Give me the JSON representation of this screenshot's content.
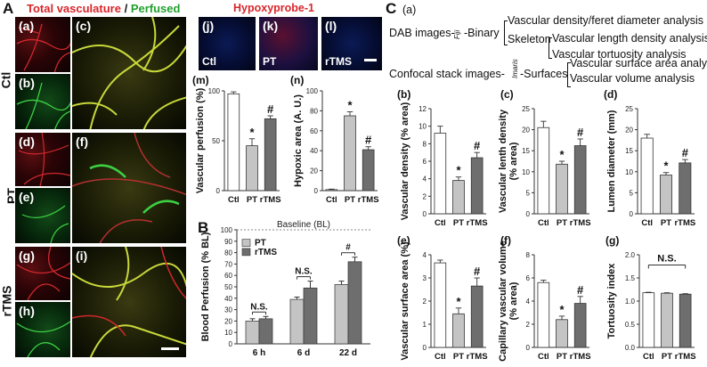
{
  "panel_letters": {
    "A": "A",
    "B": "B",
    "C": "C"
  },
  "header": {
    "total": "Total vasculature",
    "slash": " / ",
    "perfused": "Perfused",
    "hypoxy": "Hypoxyprobe-1"
  },
  "colors": {
    "red": "#d9262b",
    "green": "#22a02e",
    "hypoxy": "#d9262b"
  },
  "groups": {
    "ctl": "Ctl",
    "pt": "PT",
    "rtms": "rTMS"
  },
  "micro_panels": {
    "a": "(a)",
    "b": "(b)",
    "c": "(c)",
    "d": "(d)",
    "e": "(e)",
    "f": "(f)",
    "g": "(g)",
    "h": "(h)",
    "i": "(i)",
    "j": "(j)",
    "k": "(k)",
    "l": "(l)"
  },
  "flow": {
    "label": "(a)",
    "dab": "DAB images-",
    "fiji": "Fiji",
    "binary": "-Binary",
    "skeleton": "Skeleton",
    "out1": "Vascular density/feret diameter analysis",
    "out2": "Vascular length density analysis",
    "out3": "Vascular tortuosity analysis",
    "confocal": "Confocal stack images-",
    "imaris": "Imaris",
    "surfaces": "-Surfaces",
    "out4": "Vascular surface area analysis",
    "out5": "Vascular volume analysis"
  },
  "chart_data": [
    {
      "id": "m",
      "panel": "(m)",
      "type": "bar",
      "categories": [
        "Ctl",
        "PT",
        "rTMS"
      ],
      "values": [
        97,
        45,
        72
      ],
      "errors": [
        2,
        7,
        3
      ],
      "sig": [
        "",
        "*",
        "#"
      ],
      "ylabel": "Vascular perfusion (%)",
      "ylim": [
        0,
        100
      ],
      "yticks": [
        "0",
        "50",
        "100"
      ]
    },
    {
      "id": "n",
      "panel": "(n)",
      "type": "bar",
      "categories": [
        "Ctl",
        "PT",
        "rTMS"
      ],
      "values": [
        1,
        75,
        41
      ],
      "errors": [
        0.5,
        4,
        3
      ],
      "sig": [
        "",
        "*",
        "#"
      ],
      "ylabel": "Hypoxic area (A. U.)",
      "ylim": [
        0,
        100
      ],
      "yticks": [
        "0",
        "20",
        "40",
        "60",
        "80",
        "100"
      ]
    },
    {
      "id": "B",
      "panel": "",
      "type": "bar",
      "categories": [
        "6 h",
        "6 d",
        "22 d"
      ],
      "series": [
        {
          "name": "PT",
          "values": [
            20,
            39,
            52
          ],
          "errors": [
            2,
            2,
            3
          ]
        },
        {
          "name": "rTMS",
          "values": [
            22,
            49,
            72
          ],
          "errors": [
            2,
            6,
            4
          ]
        }
      ],
      "baseline": "Baseline (BL)",
      "brackets": [
        "N.S.",
        "N.S.",
        "#"
      ],
      "ylabel": "Blood Perfusion (% BL)",
      "ylim": [
        0,
        100
      ],
      "yticks": [
        "0",
        "10",
        "20",
        "30",
        "40",
        "50",
        "60",
        "70",
        "80",
        "90",
        "100"
      ]
    },
    {
      "id": "b",
      "panel": "(b)",
      "type": "bar",
      "categories": [
        "Ctl",
        "PT",
        "rTMS"
      ],
      "values": [
        9.2,
        3.8,
        6.4
      ],
      "errors": [
        0.8,
        0.4,
        0.6
      ],
      "sig": [
        "",
        "*",
        "#"
      ],
      "ylabel": "Vascular density (% area)",
      "ylim": [
        0,
        12
      ],
      "yticks": [
        "0",
        "2",
        "4",
        "6",
        "8",
        "10",
        "12"
      ]
    },
    {
      "id": "c",
      "panel": "(c)",
      "type": "bar",
      "categories": [
        "Ctl",
        "PT",
        "rTMS"
      ],
      "values": [
        20.5,
        11.8,
        16.2
      ],
      "errors": [
        1.5,
        0.7,
        1.6
      ],
      "sig": [
        "",
        "*",
        "#"
      ],
      "ylabel": "Vascular lenth density (% area)",
      "ylim": [
        0,
        25
      ],
      "yticks": [
        "0",
        "5",
        "10",
        "15",
        "20",
        "25"
      ]
    },
    {
      "id": "d",
      "panel": "(d)",
      "type": "bar",
      "categories": [
        "Ctl",
        "PT",
        "rTMS"
      ],
      "values": [
        18.0,
        9.2,
        12.1
      ],
      "errors": [
        0.9,
        0.6,
        0.8
      ],
      "sig": [
        "",
        "*",
        "#"
      ],
      "ylabel": "Lumen diameter (mm)",
      "ylim": [
        0,
        25
      ],
      "yticks": [
        "0",
        "5",
        "10",
        "15",
        "20",
        "25"
      ]
    },
    {
      "id": "e",
      "panel": "(e)",
      "type": "bar",
      "categories": [
        "Ctl",
        "PT",
        "rTMS"
      ],
      "values": [
        3.65,
        1.45,
        2.65
      ],
      "errors": [
        0.12,
        0.25,
        0.35
      ],
      "sig": [
        "",
        "*",
        "#"
      ],
      "ylabel": "Vascular surface area (%)",
      "ylim": [
        0,
        4
      ],
      "yticks": [
        "0",
        "1",
        "2",
        "3",
        "4"
      ]
    },
    {
      "id": "f",
      "panel": "(f)",
      "type": "bar",
      "categories": [
        "Ctl",
        "PT",
        "rTMS"
      ],
      "values": [
        5.6,
        2.4,
        3.8
      ],
      "errors": [
        0.2,
        0.3,
        0.6
      ],
      "sig": [
        "",
        "*",
        "#"
      ],
      "ylabel": "Capillary vascular volume (% area)",
      "ylim": [
        0,
        8
      ],
      "yticks": [
        "0",
        "2",
        "4",
        "6",
        "8"
      ]
    },
    {
      "id": "g",
      "panel": "(g)",
      "type": "bar",
      "categories": [
        "Ctl",
        "PT",
        "rTMS"
      ],
      "values": [
        1.18,
        1.17,
        1.15
      ],
      "errors": [
        0.01,
        0.01,
        0.01
      ],
      "sig": [
        "",
        "",
        ""
      ],
      "bracket": "N.S.",
      "ylabel": "Tortuosity index",
      "ylim": [
        0,
        2
      ],
      "yticks": [
        "0.0",
        "0.5",
        "1.0",
        "1.5",
        "2.0"
      ]
    }
  ]
}
